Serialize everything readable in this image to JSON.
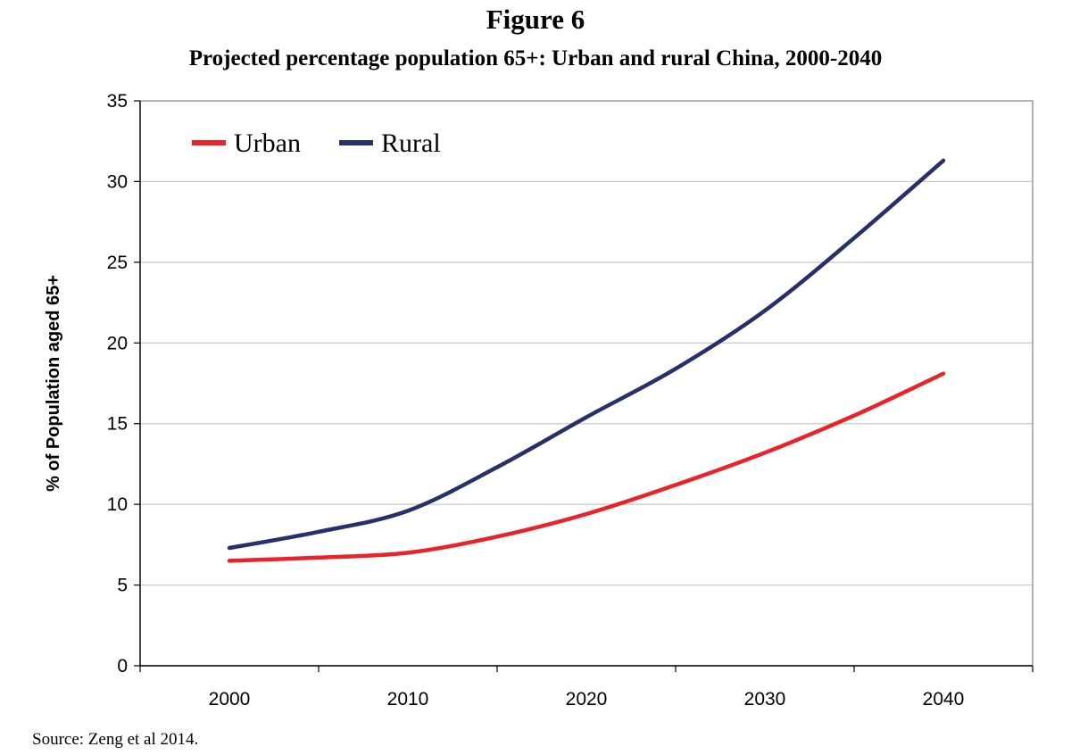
{
  "figure_label": "Figure 6",
  "source": "Source: Zeng et al 2014.",
  "chart_data": {
    "type": "line",
    "title": "Projected percentage population 65+: Urban and rural China, 2000-2040",
    "ylabel": "% of Population  aged 65+",
    "xlabel": "",
    "x": [
      2000,
      2005,
      2010,
      2015,
      2020,
      2025,
      2030,
      2035,
      2040
    ],
    "x_ticks": [
      "2000",
      "2010",
      "2020",
      "2030",
      "2040"
    ],
    "y_ticks": [
      "0",
      "5",
      "10",
      "15",
      "20",
      "25",
      "30",
      "35"
    ],
    "ylim": [
      0,
      35
    ],
    "xlim": [
      1995,
      2045
    ],
    "grid": "horizontal",
    "legend_position": "top-left",
    "series": [
      {
        "name": "Urban",
        "color": "#e8232a",
        "values": [
          6.5,
          6.7,
          7.0,
          8.0,
          9.4,
          11.2,
          13.2,
          15.5,
          18.1
        ]
      },
      {
        "name": "Rural",
        "color": "#27306b",
        "values": [
          7.3,
          8.3,
          9.6,
          12.3,
          15.4,
          18.4,
          22.0,
          26.5,
          31.3
        ]
      }
    ]
  }
}
